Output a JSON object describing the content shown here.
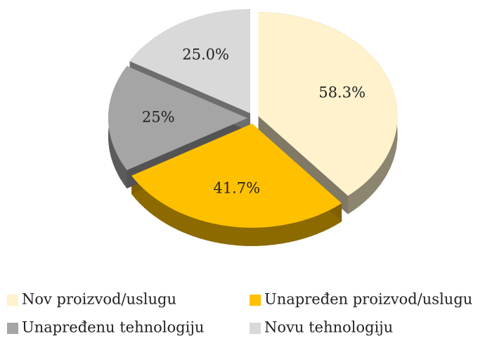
{
  "chart_data": {
    "type": "pie",
    "categories": [
      "Nov proizvod/uslugu",
      "Unapređen proizvod/uslugu",
      "Unapređenu tehnologiju",
      "Novu tehnologiju"
    ],
    "values": [
      58.3,
      41.7,
      25,
      25
    ],
    "value_labels": [
      "58.3%",
      "41.7%",
      "25%",
      "25.0%"
    ],
    "colors": [
      "#fff2cc",
      "#ffc000",
      "#a5a5a5",
      "#d9d9d9"
    ],
    "legend": "bottom"
  }
}
